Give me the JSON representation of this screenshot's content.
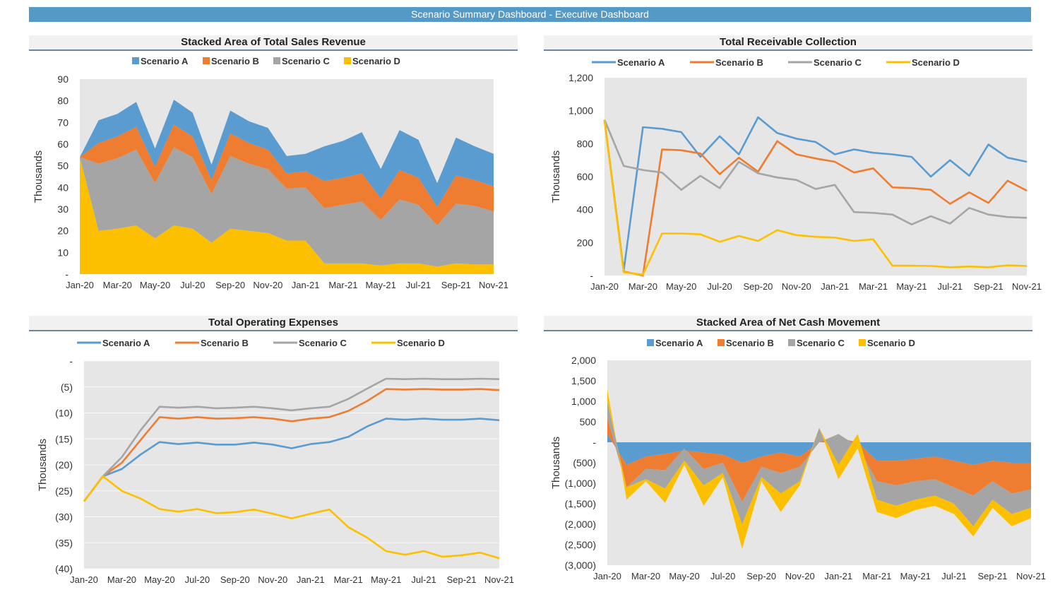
{
  "dashboard": {
    "title": "Scenario Summary Dashboard - Executive Dashboard"
  },
  "colors": {
    "Scenario A": "#5a9bd0",
    "Scenario B": "#ee7d31",
    "Scenario C": "#a5a5a5",
    "Scenario D": "#fdc000"
  },
  "charts": [
    {
      "id": "sales",
      "title": "Stacked Area of Total Sales Revenue",
      "legend_style": "box",
      "chart_data": {
        "type": "area",
        "stacked": true,
        "title": "Stacked Area of Total Sales Revenue",
        "ylabel": "Thousands",
        "ylim": [
          0,
          90
        ],
        "yticks": [
          0,
          10,
          20,
          30,
          40,
          50,
          60,
          70,
          80,
          90
        ],
        "ytick_labels": [
          "-",
          "10",
          "20",
          "30",
          "40",
          "50",
          "60",
          "70",
          "80",
          "90"
        ],
        "x": [
          "Jan-20",
          "Feb-20",
          "Mar-20",
          "Apr-20",
          "May-20",
          "Jun-20",
          "Jul-20",
          "Aug-20",
          "Sep-20",
          "Oct-20",
          "Nov-20",
          "Dec-20",
          "Jan-21",
          "Feb-21",
          "Mar-21",
          "Apr-21",
          "May-21",
          "Jun-21",
          "Jul-21",
          "Aug-21",
          "Sep-21",
          "Oct-21",
          "Nov-21"
        ],
        "xtick_labels": [
          "Jan-20",
          "Mar-20",
          "May-20",
          "Jul-20",
          "Sep-20",
          "Nov-20",
          "Jan-21",
          "Mar-21",
          "May-21",
          "Jul-21",
          "Sep-21",
          "Nov-21"
        ],
        "legend_position": "top",
        "grid": false,
        "series": [
          {
            "name": "Scenario D",
            "values": [
              54,
              20,
              21,
              22.5,
              16.5,
              22.5,
              21,
              14.5,
              21,
              20,
              19,
              15.5,
              15.5,
              5,
              5,
              5,
              4,
              5,
              5,
              3.5,
              5,
              4.5,
              4.5
            ]
          },
          {
            "name": "Scenario C",
            "values": [
              0,
              31,
              32.5,
              35,
              25.5,
              36,
              33,
              22.5,
              33.5,
              31,
              29.5,
              24,
              24.5,
              25.5,
              27,
              28.5,
              21,
              29.5,
              27,
              19,
              27.5,
              27,
              24.5
            ]
          },
          {
            "name": "Scenario B",
            "values": [
              0,
              9.5,
              10,
              10.5,
              7.5,
              10.5,
              9.5,
              6.5,
              10.5,
              9.5,
              9,
              7,
              7.5,
              12.5,
              12.5,
              13,
              10,
              13.5,
              12.5,
              8.5,
              13,
              12,
              11.5
            ]
          },
          {
            "name": "Scenario A",
            "values": [
              0,
              10.5,
              10.5,
              11.5,
              8.5,
              11.5,
              11,
              7,
              10.5,
              10,
              10,
              8,
              8,
              16,
              17,
              19,
              13.5,
              18.5,
              17.5,
              11,
              17.5,
              15.5,
              15
            ]
          }
        ]
      }
    },
    {
      "id": "receivable",
      "title": "Total Receivable Collection",
      "legend_style": "line",
      "chart_data": {
        "type": "line",
        "title": "Total Receivable Collection",
        "ylabel": "Thousands",
        "ylim": [
          0,
          1200
        ],
        "yticks": [
          0,
          200,
          400,
          600,
          800,
          1000,
          1200
        ],
        "ytick_labels": [
          "-",
          "200",
          "400",
          "600",
          "800",
          "1,000",
          "1,200"
        ],
        "x": [
          "Jan-20",
          "Feb-20",
          "Mar-20",
          "Apr-20",
          "May-20",
          "Jun-20",
          "Jul-20",
          "Aug-20",
          "Sep-20",
          "Oct-20",
          "Nov-20",
          "Dec-20",
          "Jan-21",
          "Feb-21",
          "Mar-21",
          "Apr-21",
          "May-21",
          "Jun-21",
          "Jul-21",
          "Aug-21",
          "Sep-21",
          "Oct-21",
          "Nov-21"
        ],
        "xtick_labels": [
          "Jan-20",
          "Mar-20",
          "May-20",
          "Jul-20",
          "Sep-20",
          "Nov-20",
          "Jan-21",
          "Mar-21",
          "May-21",
          "Jul-21",
          "Sep-21",
          "Nov-21"
        ],
        "legend_position": "top",
        "grid": false,
        "series": [
          {
            "name": "Scenario A",
            "values": [
              945,
              30,
              900,
              890,
              870,
              720,
              845,
              735,
              960,
              865,
              830,
              810,
              735,
              765,
              745,
              735,
              720,
              600,
              700,
              605,
              795,
              715,
              690
            ]
          },
          {
            "name": "Scenario B",
            "values": [
              945,
              25,
              0,
              765,
              760,
              740,
              615,
              715,
              630,
              815,
              735,
              710,
              690,
              625,
              650,
              535,
              530,
              520,
              435,
              505,
              440,
              575,
              515
            ]
          },
          {
            "name": "Scenario C",
            "values": [
              945,
              665,
              640,
              625,
              520,
              605,
              530,
              690,
              620,
              595,
              580,
              525,
              550,
              385,
              380,
              370,
              310,
              360,
              315,
              410,
              370,
              355,
              350
            ]
          },
          {
            "name": "Scenario D",
            "values": [
              945,
              20,
              5,
              255,
              255,
              250,
              205,
              240,
              210,
              275,
              245,
              235,
              230,
              210,
              220,
              60,
              60,
              58,
              50,
              55,
              50,
              62,
              58
            ]
          }
        ]
      }
    },
    {
      "id": "opex",
      "title": "Total Operating Expenses",
      "legend_style": "line",
      "chart_data": {
        "type": "line",
        "title": "Total Operating Expenses",
        "ylabel": "Thousands",
        "ylim": [
          -40,
          0
        ],
        "yticks": [
          0,
          -5,
          -10,
          -15,
          -20,
          -25,
          -30,
          -35,
          -40
        ],
        "ytick_labels": [
          "-",
          "(5)",
          "(10)",
          "(15)",
          "(20)",
          "(25)",
          "(30)",
          "(35)",
          "(40)"
        ],
        "x": [
          "Jan-20",
          "Feb-20",
          "Mar-20",
          "Apr-20",
          "May-20",
          "Jun-20",
          "Jul-20",
          "Aug-20",
          "Sep-20",
          "Oct-20",
          "Nov-20",
          "Dec-20",
          "Jan-21",
          "Feb-21",
          "Mar-21",
          "Apr-21",
          "May-21",
          "Jun-21",
          "Jul-21",
          "Aug-21",
          "Sep-21",
          "Oct-21",
          "Nov-21"
        ],
        "xtick_labels": [
          "Jan-20",
          "Mar-20",
          "May-20",
          "Jul-20",
          "Sep-20",
          "Nov-20",
          "Jan-21",
          "Mar-21",
          "May-21",
          "Jul-21",
          "Sep-21",
          "Nov-21"
        ],
        "legend_position": "top",
        "grid": true,
        "series": [
          {
            "name": "Scenario A",
            "values": [
              -27,
              -22.2,
              -20.8,
              -18,
              -15.6,
              -16,
              -15.7,
              -16.1,
              -16.1,
              -15.7,
              -16.1,
              -16.8,
              -16,
              -15.6,
              -14.6,
              -12.6,
              -11.1,
              -11.3,
              -11.1,
              -11.3,
              -11.3,
              -11.1,
              -11.4
            ]
          },
          {
            "name": "Scenario B",
            "values": [
              -27,
              -22.2,
              -19.6,
              -15.2,
              -10.8,
              -11.1,
              -10.8,
              -11.1,
              -11,
              -10.8,
              -11.1,
              -11.6,
              -11.1,
              -10.8,
              -9.6,
              -7.7,
              -5.4,
              -5.5,
              -5.4,
              -5.5,
              -5.5,
              -5.4,
              -5.6
            ]
          },
          {
            "name": "Scenario C",
            "values": [
              -27,
              -22.2,
              -18.5,
              -13.3,
              -8.8,
              -9,
              -8.8,
              -9.1,
              -9,
              -8.8,
              -9.1,
              -9.5,
              -9.1,
              -8.8,
              -7.3,
              -5.3,
              -3.4,
              -3.5,
              -3.4,
              -3.5,
              -3.5,
              -3.4,
              -3.5
            ]
          },
          {
            "name": "Scenario D",
            "values": [
              -27,
              -22.2,
              -25,
              -26.5,
              -28.5,
              -29,
              -28.5,
              -29.3,
              -29.1,
              -28.6,
              -29.4,
              -30.3,
              -29.4,
              -28.6,
              -32,
              -34,
              -36.6,
              -37.3,
              -36.6,
              -37.7,
              -37.4,
              -36.9,
              -38
            ]
          }
        ]
      }
    },
    {
      "id": "cash",
      "title": "Stacked Area of Net Cash Movement",
      "legend_style": "box",
      "chart_data": {
        "type": "area",
        "stacked": true,
        "title": "Stacked Area of Net Cash Movement",
        "ylabel": "Thousands",
        "ylim": [
          -3000,
          2000
        ],
        "yticks": [
          2000,
          1500,
          1000,
          500,
          0,
          -500,
          -1000,
          -1500,
          -2000,
          -2500,
          -3000
        ],
        "ytick_labels": [
          "2,000",
          "1,500",
          "1,000",
          "500",
          "-",
          "(500)",
          "(1,000)",
          "(1,500)",
          "(2,000)",
          "(2,500)",
          "(3,000)"
        ],
        "x": [
          "Jan-20",
          "Feb-20",
          "Mar-20",
          "Apr-20",
          "May-20",
          "Jun-20",
          "Jul-20",
          "Aug-20",
          "Sep-20",
          "Oct-20",
          "Nov-20",
          "Dec-20",
          "Jan-21",
          "Feb-21",
          "Mar-21",
          "Apr-21",
          "May-21",
          "Jun-21",
          "Jul-21",
          "Aug-21",
          "Sep-21",
          "Oct-21",
          "Nov-21"
        ],
        "xtick_labels": [
          "Jan-20",
          "Mar-20",
          "May-20",
          "Jul-20",
          "Sep-20",
          "Nov-20",
          "Jan-21",
          "Mar-21",
          "May-21",
          "Jul-21",
          "Sep-21",
          "Nov-21"
        ],
        "legend_position": "top",
        "grid": false,
        "series": [
          {
            "name": "Scenario A",
            "values": [
              200,
              -550,
              -350,
              -280,
              -200,
              -250,
              -300,
              -500,
              -350,
              -250,
              -350,
              0,
              100,
              0,
              -450,
              -450,
              -400,
              -350,
              -450,
              -550,
              -450,
              -500,
              -500
            ]
          },
          {
            "name": "Scenario B",
            "values": [
              400,
              -550,
              -300,
              -400,
              50,
              -400,
              -200,
              -950,
              -250,
              -500,
              -250,
              0,
              100,
              -100,
              -500,
              -600,
              -550,
              -550,
              -650,
              -750,
              -500,
              -750,
              -650
            ]
          },
          {
            "name": "Scenario C",
            "values": [
              400,
              0,
              -250,
              -450,
              -300,
              -400,
              -250,
              -550,
              -250,
              -500,
              -350,
              350,
              -750,
              300,
              -450,
              -500,
              -450,
              -400,
              -400,
              -750,
              -450,
              -500,
              -450
            ]
          },
          {
            "name": "Scenario D",
            "values": [
              300,
              -300,
              -50,
              -350,
              -100,
              -500,
              -100,
              -600,
              -100,
              -450,
              -100,
              0,
              -350,
              -350,
              -300,
              -300,
              -250,
              -250,
              -250,
              -250,
              -200,
              -300,
              -250
            ]
          }
        ]
      }
    }
  ]
}
